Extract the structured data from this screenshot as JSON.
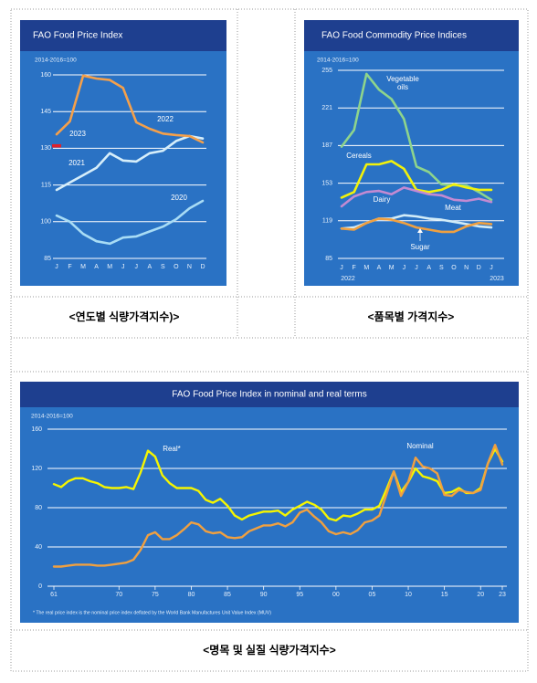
{
  "chart_data": [
    {
      "type": "line",
      "title": "FAO Food Price Index",
      "subtitle": "2014-2016=100",
      "categories": [
        "J",
        "F",
        "M",
        "A",
        "M",
        "J",
        "J",
        "A",
        "S",
        "O",
        "N",
        "D"
      ],
      "ylim": [
        85,
        160
      ],
      "yticks": [
        85,
        100,
        115,
        130,
        145,
        160
      ],
      "grid": true,
      "series": [
        {
          "name": "2020",
          "color": "#a8dcf5",
          "values": [
            102.5,
            100,
            95,
            92,
            91,
            93.5,
            94,
            96,
            98,
            101,
            105.5,
            108.5
          ]
        },
        {
          "name": "2021",
          "color": "#d6eefa",
          "values": [
            113,
            116,
            119,
            122,
            128,
            125,
            124.6,
            128,
            129,
            133,
            135,
            134
          ]
        },
        {
          "name": "2022",
          "color": "#f5a04a",
          "values": [
            135.7,
            141,
            159.7,
            158.5,
            157.9,
            154.7,
            140.6,
            138,
            136,
            135.4,
            135,
            132.4
          ]
        },
        {
          "name": "2023",
          "color": "#e0202a",
          "values": [
            131,
            null,
            null,
            null,
            null,
            null,
            null,
            null,
            null,
            null,
            null,
            null
          ]
        }
      ]
    },
    {
      "type": "line",
      "title": "FAO Food Commodity Price Indices",
      "subtitle": "2014-2016=100",
      "categories": [
        "J",
        "F",
        "M",
        "A",
        "M",
        "J",
        "J",
        "A",
        "S",
        "O",
        "N",
        "D",
        "J"
      ],
      "x_group_labels": [
        "2022",
        "2023"
      ],
      "ylim": [
        85,
        255
      ],
      "yticks": [
        85,
        119,
        153,
        187,
        221,
        255
      ],
      "grid": true,
      "series": [
        {
          "name": "Vegetable oils",
          "color": "#8ed48c",
          "values": [
            186,
            201,
            251.8,
            237.5,
            229,
            211,
            168,
            163,
            152,
            151,
            151,
            145,
            138
          ]
        },
        {
          "name": "Cereals",
          "color": "#f2f20a",
          "values": [
            140,
            145,
            170,
            170,
            173,
            166,
            147,
            145,
            147,
            152,
            149,
            147,
            147
          ]
        },
        {
          "name": "Dairy",
          "color": "#c38ad2",
          "values": [
            132,
            141,
            145,
            146,
            143,
            149,
            146,
            143,
            142,
            138,
            137,
            139,
            136
          ]
        },
        {
          "name": "Meat",
          "color": "#d2ecf8",
          "values": [
            112,
            113,
            117,
            121,
            121,
            124,
            123,
            121,
            120,
            118,
            116,
            114,
            113
          ]
        },
        {
          "name": "Sugar",
          "color": "#f0a040",
          "values": [
            112,
            111,
            117,
            121,
            120,
            117,
            113,
            111,
            109,
            109,
            114,
            117,
            116
          ]
        }
      ]
    },
    {
      "type": "line",
      "title": "FAO Food Price Index in nominal and real terms",
      "subtitle": "2014-2016=100",
      "footnote": "* The real price index is the nominal price index deflated by the World Bank Manufactures Unit Value Index (MUV)",
      "x": [
        1961,
        1962,
        1963,
        1964,
        1965,
        1966,
        1967,
        1968,
        1969,
        1970,
        1971,
        1972,
        1973,
        1974,
        1975,
        1976,
        1977,
        1978,
        1979,
        1980,
        1981,
        1982,
        1983,
        1984,
        1985,
        1986,
        1987,
        1988,
        1989,
        1990,
        1991,
        1992,
        1993,
        1994,
        1995,
        1996,
        1997,
        1998,
        1999,
        2000,
        2001,
        2002,
        2003,
        2004,
        2005,
        2006,
        2007,
        2008,
        2009,
        2010,
        2011,
        2012,
        2013,
        2014,
        2015,
        2016,
        2017,
        2018,
        2019,
        2020,
        2021,
        2022,
        2023
      ],
      "xlim": [
        1961,
        2023
      ],
      "xticks": [
        {
          "value": 1961,
          "label": "61"
        },
        {
          "value": 1970,
          "label": "70"
        },
        {
          "value": 1975,
          "label": "75"
        },
        {
          "value": 1980,
          "label": "80"
        },
        {
          "value": 1985,
          "label": "85"
        },
        {
          "value": 1990,
          "label": "90"
        },
        {
          "value": 1995,
          "label": "95"
        },
        {
          "value": 2000,
          "label": "00"
        },
        {
          "value": 2005,
          "label": "05"
        },
        {
          "value": 2010,
          "label": "10"
        },
        {
          "value": 2015,
          "label": "15"
        },
        {
          "value": 2020,
          "label": "20"
        },
        {
          "value": 2023,
          "label": "23"
        }
      ],
      "ylim": [
        0,
        160
      ],
      "yticks": [
        0,
        40,
        80,
        120,
        160
      ],
      "grid": true,
      "series": [
        {
          "name": "Real*",
          "color": "#f5f500",
          "values": [
            104,
            101,
            107,
            110,
            110,
            107,
            105,
            101,
            100,
            100,
            101,
            99,
            116,
            138,
            132,
            113,
            105,
            100,
            100,
            100,
            97,
            88,
            85,
            89,
            82,
            72,
            68,
            72,
            74,
            76,
            76,
            77,
            72,
            78,
            82,
            86,
            83,
            78,
            69,
            67,
            72,
            71,
            74,
            78,
            78,
            82,
            99,
            117,
            96,
            106,
            120,
            112,
            110,
            107,
            95,
            96,
            100,
            95,
            95,
            100,
            125,
            140,
            127
          ]
        },
        {
          "name": "Nominal",
          "color": "#f0a040",
          "values": [
            20,
            20,
            21,
            22,
            22,
            22,
            21,
            21,
            22,
            23,
            24,
            27,
            37,
            52,
            55,
            48,
            48,
            52,
            58,
            65,
            63,
            56,
            54,
            55,
            50,
            49,
            50,
            56,
            59,
            62,
            62,
            64,
            61,
            65,
            75,
            78,
            71,
            65,
            56,
            53,
            55,
            53,
            57,
            65,
            67,
            72,
            94,
            117,
            92,
            106,
            131,
            122,
            120,
            115,
            93,
            92,
            98,
            96,
            95,
            98,
            125,
            144,
            124
          ]
        }
      ]
    }
  ],
  "captions": [
    "<연도별 식량가격지수)>",
    "<품목별 가격지수>",
    "<명목 및 실질 식량가격지수>"
  ]
}
